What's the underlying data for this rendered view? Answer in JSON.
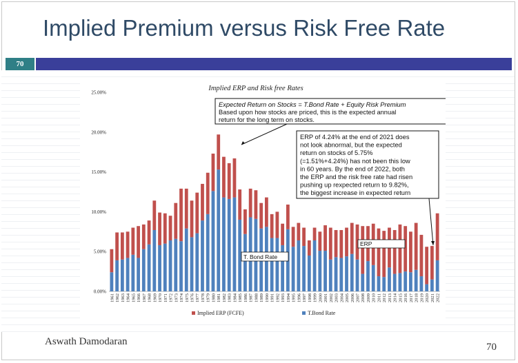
{
  "slide": {
    "title": "Implied Premium versus Risk Free Rate",
    "slide_number_badge": "70",
    "author": "Aswath Damodaran",
    "page_number": "70"
  },
  "chart_data": {
    "type": "bar",
    "stacked": true,
    "title": "Implied ERP and Risk free Rates",
    "categories": [
      "1961",
      "1962",
      "1963",
      "1964",
      "1965",
      "1966",
      "1967",
      "1968",
      "1969",
      "1970",
      "1971",
      "1972",
      "1973",
      "1974",
      "1975",
      "1976",
      "1977",
      "1978",
      "1979",
      "1980",
      "1981",
      "1982",
      "1983",
      "1984",
      "1985",
      "1986",
      "1987",
      "1988",
      "1989",
      "1990",
      "1991",
      "1992",
      "1993",
      "1994",
      "1995",
      "1996",
      "1997",
      "1998",
      "1999",
      "2000",
      "2001",
      "2002",
      "2003",
      "2004",
      "2005",
      "2006",
      "2007",
      "2008",
      "2009",
      "2010",
      "2011",
      "2012",
      "2013",
      "2014",
      "2015",
      "2016",
      "2017",
      "2018",
      "2019",
      "2020",
      "2021",
      "2022"
    ],
    "series": [
      {
        "name": "Implied ERP (FCFE)",
        "color": "#c0504d",
        "values": [
          2.9,
          3.5,
          3.4,
          3.3,
          3.4,
          4.0,
          3.1,
          3.0,
          3.7,
          4.1,
          3.8,
          3.1,
          4.5,
          6.6,
          5.0,
          4.6,
          5.1,
          4.6,
          5.2,
          4.7,
          4.4,
          5.1,
          4.5,
          4.9,
          3.8,
          3.1,
          3.6,
          3.6,
          3.2,
          3.7,
          3.0,
          3.3,
          2.7,
          3.1,
          2.5,
          2.2,
          2.3,
          1.9,
          1.6,
          2.4,
          3.2,
          4.0,
          3.4,
          3.5,
          3.6,
          3.9,
          4.4,
          6.0,
          4.4,
          5.2,
          6.0,
          5.8,
          5.0,
          5.5,
          6.1,
          5.7,
          5.1,
          5.9,
          5.2,
          4.7,
          4.2,
          5.9
        ]
      },
      {
        "name": "T.Bond Rate",
        "color": "#4f81bd",
        "values": [
          2.4,
          3.9,
          4.0,
          4.2,
          4.6,
          4.2,
          5.3,
          5.9,
          7.7,
          5.8,
          6.0,
          6.4,
          6.6,
          6.3,
          7.9,
          6.8,
          7.3,
          8.9,
          9.7,
          12.6,
          15.3,
          11.8,
          11.6,
          11.8,
          9.0,
          7.2,
          9.3,
          9.1,
          7.9,
          8.1,
          6.7,
          6.7,
          5.8,
          7.8,
          5.6,
          6.4,
          5.7,
          4.5,
          6.4,
          5.1,
          5.1,
          4.0,
          4.3,
          4.2,
          4.4,
          4.7,
          4.0,
          2.2,
          3.8,
          3.3,
          1.9,
          1.8,
          3.0,
          2.2,
          2.3,
          2.5,
          2.4,
          2.7,
          1.9,
          0.9,
          1.5,
          3.9
        ]
      }
    ],
    "ylim": [
      0,
      25
    ],
    "y_tick_labels": [
      "0.00%",
      "5.00%",
      "10.00%",
      "15.00%",
      "20.00%",
      "25.00%"
    ],
    "legend_position": "bottom",
    "annotations": {
      "expected_return_title": "Expected Return on Stocks = T.Bond Rate + Equity Risk Premium",
      "expected_return_body": [
        "Based upon how stocks are priced, this is the expected annual",
        "return for the long term on stocks."
      ],
      "erp_note": [
        "ERP of 4.24% at the end of 2021 does",
        "not look abnormal, but the expected",
        "return on stocks of 5.75%",
        "(=1.51%+4.24%) has not been this low",
        "in 60 years. By the end of 2022, both",
        "the ERP and the risk free rate had risen",
        "pushing up rexpected return to 9.82%,",
        "the biggest increase in expected return"
      ],
      "tbond_label": "T. Bond Rate",
      "erp_label": "ERP"
    }
  }
}
